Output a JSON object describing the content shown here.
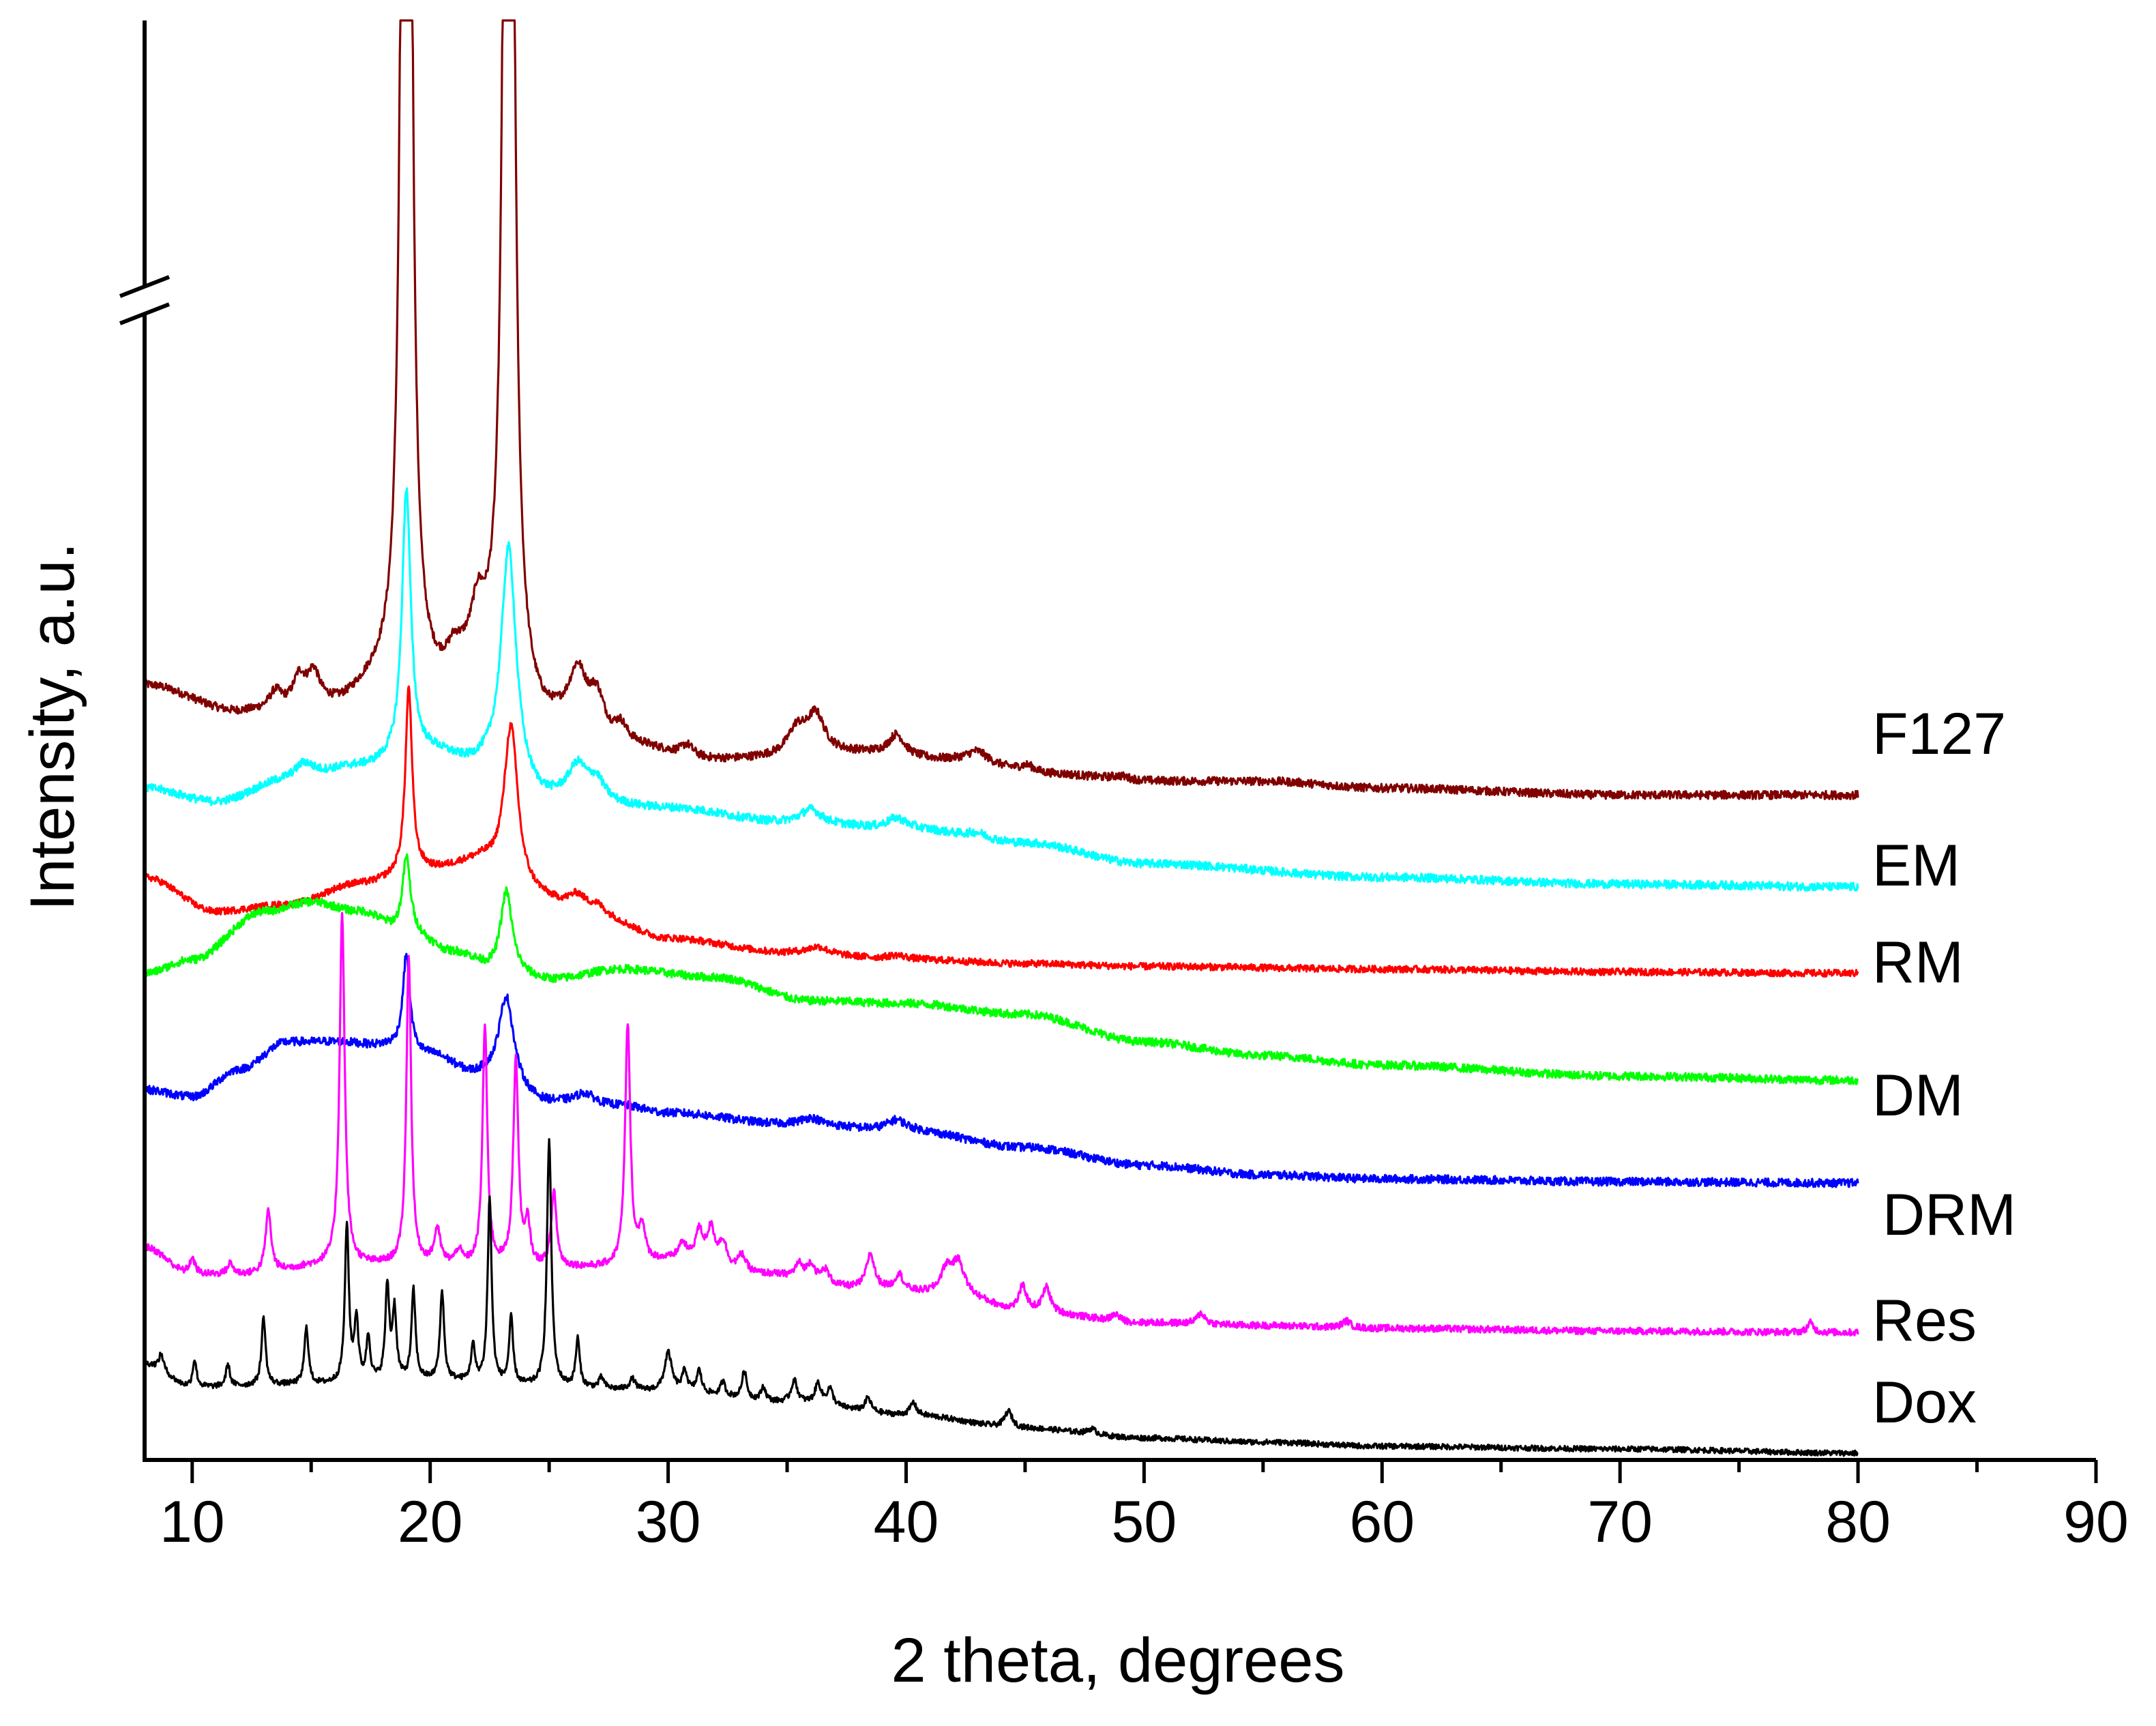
{
  "chart_data": {
    "type": "line",
    "title": "",
    "xlabel": "2 theta, degrees",
    "ylabel": "Intensity, a.u.",
    "xlim": [
      8,
      90
    ],
    "xticks": [
      10,
      20,
      30,
      40,
      50,
      60,
      70,
      80,
      90
    ],
    "x_minor_step": 5,
    "y_axis_break": true,
    "y_scale": "arbitrary units, traces vertically offset",
    "ylim": [
      0,
      105
    ],
    "grid": false,
    "legend": "labels at right end of each trace",
    "series": [
      {
        "name": "F127",
        "color": "#800000",
        "baseline": [
          [
            8,
            56.5
          ],
          [
            12,
            54.5
          ],
          [
            16,
            55.0
          ],
          [
            18,
            56.5
          ],
          [
            20,
            56.0
          ],
          [
            22,
            58.0
          ],
          [
            25,
            53.5
          ],
          [
            28,
            52.0
          ],
          [
            32,
            51.0
          ],
          [
            38,
            51.5
          ],
          [
            42,
            51.0
          ],
          [
            46,
            50.0
          ],
          [
            50,
            49.5
          ],
          [
            55,
            49.5
          ],
          [
            60,
            49.0
          ],
          [
            70,
            48.5
          ],
          [
            80,
            48.5
          ]
        ],
        "peaks": [
          [
            13.5,
            1.2,
            0.3
          ],
          [
            14.5,
            2.0,
            0.3
          ],
          [
            15.1,
            2.2,
            0.3
          ],
          [
            19.0,
            200.0,
            0.15
          ],
          [
            21.0,
            1.2,
            0.3
          ],
          [
            22.0,
            3.0,
            0.3
          ],
          [
            23.3,
            180.0,
            0.16
          ],
          [
            26.2,
            4.0,
            0.45
          ],
          [
            27.0,
            2.8,
            0.4
          ],
          [
            28.0,
            1.2,
            0.3
          ],
          [
            30.8,
            0.8,
            0.3
          ],
          [
            35.4,
            1.8,
            0.45
          ],
          [
            36.2,
            2.8,
            0.45
          ],
          [
            39.6,
            1.5,
            0.4
          ],
          [
            43.0,
            0.8,
            0.5
          ],
          [
            45.1,
            0.5,
            0.4
          ],
          [
            49.0,
            0.3,
            0.5
          ]
        ],
        "noise": 0.3
      },
      {
        "name": "EM",
        "color": "#00FFFF",
        "baseline": [
          [
            8,
            49.0
          ],
          [
            11,
            48.0
          ],
          [
            14,
            49.5
          ],
          [
            17,
            50.5
          ],
          [
            20,
            51.5
          ],
          [
            22,
            50.5
          ],
          [
            25,
            48.0
          ],
          [
            30,
            47.5
          ],
          [
            35,
            46.5
          ],
          [
            40,
            46.0
          ],
          [
            45,
            45.0
          ],
          [
            50,
            43.5
          ],
          [
            60,
            42.5
          ],
          [
            70,
            42.0
          ],
          [
            80,
            41.8
          ]
        ],
        "peaks": [
          [
            14.7,
            1.2,
            0.5
          ],
          [
            19.0,
            19.5,
            0.22
          ],
          [
            23.3,
            17.0,
            0.38
          ],
          [
            26.2,
            2.5,
            0.5
          ],
          [
            27.0,
            1.4,
            0.4
          ],
          [
            36.0,
            1.0,
            0.5
          ],
          [
            39.6,
            0.8,
            0.5
          ],
          [
            43.0,
            0.4,
            0.5
          ]
        ],
        "noise": 0.3
      },
      {
        "name": "RM",
        "color": "#FF0000",
        "baseline": [
          [
            8,
            42.5
          ],
          [
            11,
            40.0
          ],
          [
            14,
            40.5
          ],
          [
            17,
            42.0
          ],
          [
            20,
            43.0
          ],
          [
            22,
            43.5
          ],
          [
            24,
            41.0
          ],
          [
            27,
            39.5
          ],
          [
            30,
            38.0
          ],
          [
            35,
            37.0
          ],
          [
            40,
            36.5
          ],
          [
            45,
            36.2
          ],
          [
            50,
            36.0
          ],
          [
            60,
            35.8
          ],
          [
            70,
            35.6
          ],
          [
            80,
            35.5
          ]
        ],
        "peaks": [
          [
            19.1,
            13.5,
            0.17
          ],
          [
            23.4,
            12.0,
            0.36
          ],
          [
            26.2,
            1.3,
            0.5
          ],
          [
            27.0,
            0.7,
            0.4
          ],
          [
            36.3,
            0.5,
            0.5
          ],
          [
            39.6,
            0.3,
            0.5
          ]
        ],
        "noise": 0.25
      },
      {
        "name": "DM",
        "color": "#00FF00",
        "baseline": [
          [
            8,
            35.5
          ],
          [
            10,
            36.5
          ],
          [
            13,
            40.0
          ],
          [
            15,
            40.7
          ],
          [
            17,
            40.0
          ],
          [
            19,
            38.5
          ],
          [
            21,
            37.0
          ],
          [
            23,
            35.5
          ],
          [
            25,
            35.0
          ],
          [
            28,
            35.8
          ],
          [
            32,
            35.2
          ],
          [
            36,
            33.5
          ],
          [
            40,
            33.3
          ],
          [
            45,
            32.5
          ],
          [
            50,
            30.5
          ],
          [
            55,
            29.5
          ],
          [
            60,
            28.8
          ],
          [
            70,
            28.0
          ],
          [
            80,
            27.7
          ]
        ],
        "peaks": [
          [
            19.0,
            5.5,
            0.2
          ],
          [
            23.2,
            6.0,
            0.3
          ]
        ],
        "noise": 0.3
      },
      {
        "name": "DRM",
        "color": "#0000FF",
        "baseline": [
          [
            8,
            27.0
          ],
          [
            10,
            26.5
          ],
          [
            12,
            28.5
          ],
          [
            14,
            30.5
          ],
          [
            16,
            30.5
          ],
          [
            18,
            30.2
          ],
          [
            20,
            29.5
          ],
          [
            22,
            28.0
          ],
          [
            25,
            26.0
          ],
          [
            28,
            25.8
          ],
          [
            30,
            25.3
          ],
          [
            35,
            24.5
          ],
          [
            40,
            24.0
          ],
          [
            45,
            22.8
          ],
          [
            50,
            21.5
          ],
          [
            55,
            20.8
          ],
          [
            60,
            20.5
          ],
          [
            70,
            20.3
          ],
          [
            80,
            20.2
          ]
        ],
        "peaks": [
          [
            19.0,
            7.0,
            0.18
          ],
          [
            23.2,
            6.5,
            0.38
          ],
          [
            26.5,
            0.8,
            0.5
          ],
          [
            36.0,
            0.5,
            0.5
          ],
          [
            39.6,
            0.8,
            0.5
          ]
        ],
        "noise": 0.3
      },
      {
        "name": "Res",
        "color": "#FF00FF",
        "baseline": [
          [
            8,
            15.5
          ],
          [
            10,
            13.5
          ],
          [
            12,
            13.5
          ],
          [
            16,
            14.2
          ],
          [
            20,
            14.2
          ],
          [
            24,
            14.0
          ],
          [
            27,
            14.0
          ],
          [
            30,
            14.5
          ],
          [
            34,
            13.5
          ],
          [
            38,
            12.5
          ],
          [
            42,
            12.0
          ],
          [
            45,
            10.8
          ],
          [
            50,
            10.0
          ],
          [
            55,
            9.8
          ],
          [
            60,
            9.6
          ],
          [
            70,
            9.4
          ],
          [
            80,
            9.3
          ]
        ],
        "peaks": [
          [
            10.0,
            1.2,
            0.15
          ],
          [
            11.6,
            0.8,
            0.15
          ],
          [
            13.2,
            4.5,
            0.14
          ],
          [
            16.3,
            25.5,
            0.13
          ],
          [
            19.1,
            22.5,
            0.12
          ],
          [
            20.3,
            2.5,
            0.15
          ],
          [
            21.2,
            1.0,
            0.15
          ],
          [
            22.3,
            17.5,
            0.12
          ],
          [
            23.6,
            15.0,
            0.13
          ],
          [
            24.1,
            3.0,
            0.12
          ],
          [
            25.2,
            5.5,
            0.13
          ],
          [
            28.3,
            17.5,
            0.13
          ],
          [
            28.9,
            2.5,
            0.15
          ],
          [
            30.6,
            1.2,
            0.2
          ],
          [
            31.3,
            2.2,
            0.2
          ],
          [
            31.8,
            2.5,
            0.2
          ],
          [
            32.3,
            1.8,
            0.2
          ],
          [
            33.1,
            1.2,
            0.2
          ],
          [
            35.5,
            1.0,
            0.2
          ],
          [
            36.0,
            1.2,
            0.2
          ],
          [
            36.6,
            1.0,
            0.2
          ],
          [
            38.5,
            2.5,
            0.2
          ],
          [
            39.7,
            1.2,
            0.2
          ],
          [
            41.7,
            1.8,
            0.3
          ],
          [
            42.2,
            2.2,
            0.3
          ],
          [
            44.9,
            1.8,
            0.2
          ],
          [
            45.9,
            1.8,
            0.2
          ],
          [
            48.8,
            0.5,
            0.2
          ],
          [
            52.4,
            0.8,
            0.2
          ],
          [
            58.5,
            0.5,
            0.2
          ],
          [
            78.0,
            0.7,
            0.15
          ]
        ],
        "noise": 0.25
      },
      {
        "name": "Dox",
        "color": "#000000",
        "baseline": [
          [
            8,
            7.0
          ],
          [
            10,
            5.3
          ],
          [
            15,
            5.5
          ],
          [
            20,
            5.8
          ],
          [
            25,
            5.3
          ],
          [
            30,
            5.0
          ],
          [
            35,
            4.2
          ],
          [
            40,
            3.3
          ],
          [
            45,
            2.3
          ],
          [
            50,
            1.6
          ],
          [
            55,
            1.3
          ],
          [
            60,
            1.0
          ],
          [
            70,
            0.8
          ],
          [
            80,
            0.5
          ]
        ],
        "peaks": [
          [
            8.7,
            1.2,
            0.12
          ],
          [
            10.1,
            2.0,
            0.1
          ],
          [
            11.5,
            1.6,
            0.1
          ],
          [
            13.0,
            5.0,
            0.1
          ],
          [
            14.8,
            4.2,
            0.1
          ],
          [
            16.5,
            11.5,
            0.1
          ],
          [
            16.9,
            4.5,
            0.1
          ],
          [
            17.4,
            3.2,
            0.1
          ],
          [
            18.2,
            6.8,
            0.1
          ],
          [
            18.5,
            5.0,
            0.1
          ],
          [
            19.3,
            6.5,
            0.1
          ],
          [
            20.5,
            6.5,
            0.1
          ],
          [
            21.8,
            2.6,
            0.1
          ],
          [
            22.5,
            13.5,
            0.1
          ],
          [
            23.4,
            4.8,
            0.1
          ],
          [
            25.0,
            18.0,
            0.11
          ],
          [
            26.2,
            3.5,
            0.1
          ],
          [
            27.2,
            0.8,
            0.12
          ],
          [
            28.5,
            0.8,
            0.15
          ],
          [
            30.0,
            2.8,
            0.18
          ],
          [
            30.7,
            1.5,
            0.12
          ],
          [
            31.3,
            1.6,
            0.12
          ],
          [
            32.3,
            1.0,
            0.12
          ],
          [
            33.2,
            2.0,
            0.12
          ],
          [
            34.0,
            1.0,
            0.12
          ],
          [
            35.3,
            1.6,
            0.15
          ],
          [
            36.3,
            1.5,
            0.15
          ],
          [
            36.8,
            1.2,
            0.15
          ],
          [
            38.4,
            1.0,
            0.15
          ],
          [
            40.3,
            0.9,
            0.15
          ],
          [
            44.3,
            1.2,
            0.2
          ],
          [
            47.8,
            0.4,
            0.2
          ]
        ],
        "noise": 0.2
      }
    ]
  }
}
